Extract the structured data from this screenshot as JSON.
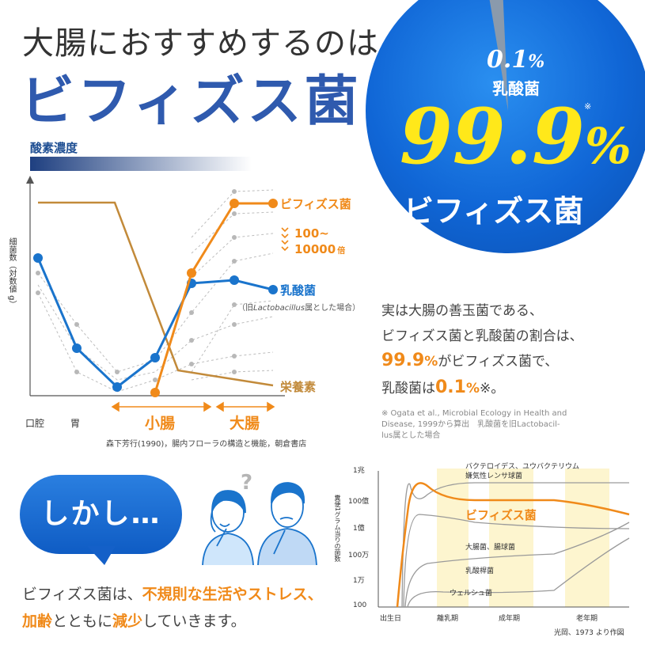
{
  "header": {
    "title_line1": "大腸におすすめするのは",
    "title_line2": "ビフィズス菌"
  },
  "circle": {
    "pct_small": "0.1",
    "pct_small_unit": "%",
    "label_small": "乳酸菌",
    "note_mark": "※",
    "pct_big": "99.9",
    "pct_big_unit": "%",
    "label_big": "ビフィズス菌"
  },
  "chart1": {
    "oxygen_label": "酸素濃度",
    "y_axis_label": "細菌数（対数値 g）",
    "bif_label": "ビフィズス菌",
    "ratio_label_1": "100~",
    "ratio_label_2": "10000",
    "ratio_unit": "倍",
    "lactic_label": "乳酸菌",
    "lactic_note_prefix": "（旧",
    "lactic_note_italic": "Lactobacillus",
    "lactic_note_suffix": "属とした場合）",
    "nutrient_label": "栄養素",
    "x_mouth": "口腔",
    "x_stomach": "胃",
    "x_small_int": "小腸",
    "x_large_int": "大腸",
    "source": "森下芳行(1990)，腸内フローラの構造と機能，朝倉書店",
    "colors": {
      "bif": "#f08a1a",
      "lactic": "#1a74cc",
      "nutrient": "#c28a3a",
      "others": "#b5b5b5"
    }
  },
  "explanation": {
    "line1": "実は大腸の善玉菌である、",
    "line2": "ビフィズス菌と乳酸菌の割合は、",
    "line3_pct": "99.9",
    "line3_unit": "%",
    "line3_rest": "がビフィズス菌で、",
    "line4_pre": "乳酸菌は",
    "line4_pct": "0.1",
    "line4_unit": "%",
    "line4_post": "※。",
    "cite1": "※ Ogata et al., Microbial Ecology in Health and",
    "cite2": "Disease, 1999から算出　乳酸菌を旧Lactobacil-",
    "cite3": "lus属とした場合"
  },
  "bubble": {
    "text": "しかし…"
  },
  "question_mark": "?",
  "bottom": {
    "line1_pre": "ビフィズス菌は、",
    "line1_emph": "不規則な生活やストレス、",
    "line2_emph1": "加齢",
    "line2_mid": "とともに",
    "line2_emph2": "減少",
    "line2_post": "していきます。"
  },
  "chart2": {
    "y_axis_label": "糞便1グラム当りの菌数",
    "y_ticks": [
      "1兆",
      "100億",
      "1億",
      "100万",
      "1万",
      "100"
    ],
    "x_ticks": [
      "出生日",
      "離乳期",
      "成年期",
      "老年期"
    ],
    "label_bacteroides_1": "バクテロイデス、ユウバクテリウム",
    "label_bacteroides_2": "嫌気性レンサ球菌",
    "label_bif": "ビフィズス菌",
    "label_ecoli": "大腸菌、腸球菌",
    "label_lactic": "乳酸桿菌",
    "label_welchii": "ウェルシュ菌",
    "source": "光岡、1973 より作図"
  }
}
